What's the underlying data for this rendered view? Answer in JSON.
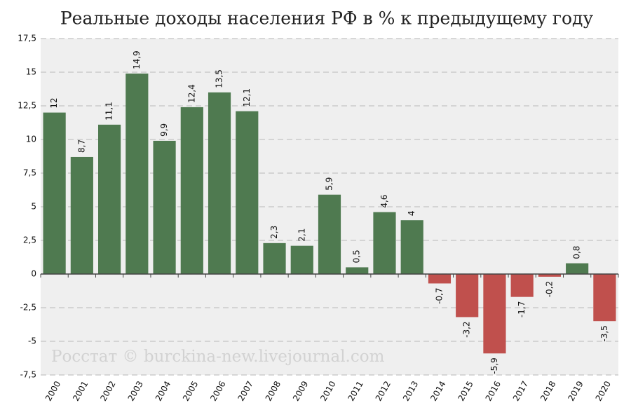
{
  "chart_data": {
    "type": "bar",
    "title": "Реальные доходы населения РФ в % к предыдущему году",
    "annotation": "Росстат © burckina-new.livejournal.com",
    "categories": [
      "2000",
      "2001",
      "2002",
      "2003",
      "2004",
      "2005",
      "2006",
      "2007",
      "2008",
      "2009",
      "2010",
      "2011",
      "2012",
      "2013",
      "2014",
      "2015",
      "2016",
      "2017",
      "2018",
      "2019",
      "2020"
    ],
    "values": [
      12,
      8.7,
      11.1,
      14.9,
      9.9,
      12.4,
      13.5,
      12.1,
      2.3,
      2.1,
      5.9,
      0.5,
      4.6,
      4,
      -0.7,
      -3.2,
      -5.9,
      -1.7,
      -0.2,
      0.8,
      -3.5
    ],
    "value_labels": [
      "12",
      "8,7",
      "11,1",
      "14,9",
      "9,9",
      "12,4",
      "13,5",
      "12,1",
      "2,3",
      "2,1",
      "5,9",
      "0,5",
      "4,6",
      "4",
      "-0,7",
      "-3,2",
      "-5,9",
      "-1,7",
      "-0,2",
      "0,8",
      "-3,5"
    ],
    "color": "#4f7a50",
    "negative_color": "#c0504d",
    "ylim": [
      -7.5,
      17.5
    ],
    "yticks": [
      {
        "value": -7.5,
        "label": "-7,5"
      },
      -5,
      {
        "value": -2.5,
        "label": "-2,5"
      },
      0,
      {
        "value": 2.5,
        "label": "2,5"
      },
      5,
      {
        "value": 7.5,
        "label": "7,5"
      },
      10,
      {
        "value": 12.5,
        "label": "12,5"
      },
      15,
      {
        "value": 17.5,
        "label": "17,5"
      }
    ],
    "grid": true
  }
}
